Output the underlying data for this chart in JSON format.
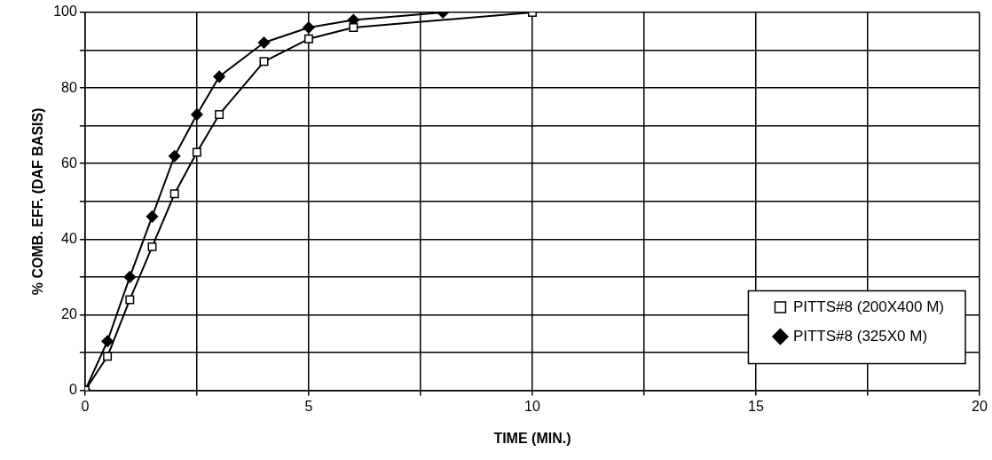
{
  "chart_data": {
    "type": "line",
    "xlabel": "TIME (MIN.)",
    "ylabel": "% COMB. EFF. (DAF BASIS)",
    "xlim": [
      0,
      20
    ],
    "xticks": [
      0,
      {
        "value": 2.5,
        "label": null
      },
      5,
      {
        "value": 7.5,
        "label": null
      },
      10,
      {
        "value": 12.5,
        "label": null
      },
      15,
      {
        "value": 17.5,
        "label": null
      },
      20
    ],
    "ylim": [
      0,
      100
    ],
    "yticks": [
      0,
      {
        "value": 10,
        "label": null
      },
      20,
      {
        "value": 30,
        "label": null
      },
      40,
      {
        "value": 50,
        "label": null
      },
      60,
      {
        "value": 70,
        "label": null
      },
      80,
      {
        "value": 90,
        "label": null
      },
      100
    ],
    "grid": true,
    "legend": "bottom right",
    "line_style": "solid",
    "series": [
      {
        "name": "PITTS#8 (200X400 M)",
        "color": "#000000",
        "marker": "square",
        "x": [
          0,
          0.5,
          1,
          1.5,
          2,
          2.5,
          3,
          4,
          5,
          6,
          10
        ],
        "values": [
          0,
          9,
          24,
          38,
          52,
          63,
          73,
          87,
          93,
          96,
          100
        ]
      },
      {
        "name": "PITTS#8 (325X0 M)",
        "color": "#000000",
        "marker": "diamond",
        "x": [
          0,
          0.5,
          1,
          1.5,
          2,
          2.5,
          3,
          4,
          5,
          6,
          8
        ],
        "values": [
          0,
          13,
          30,
          46,
          62,
          73,
          83,
          92,
          96,
          98,
          100
        ]
      }
    ]
  }
}
